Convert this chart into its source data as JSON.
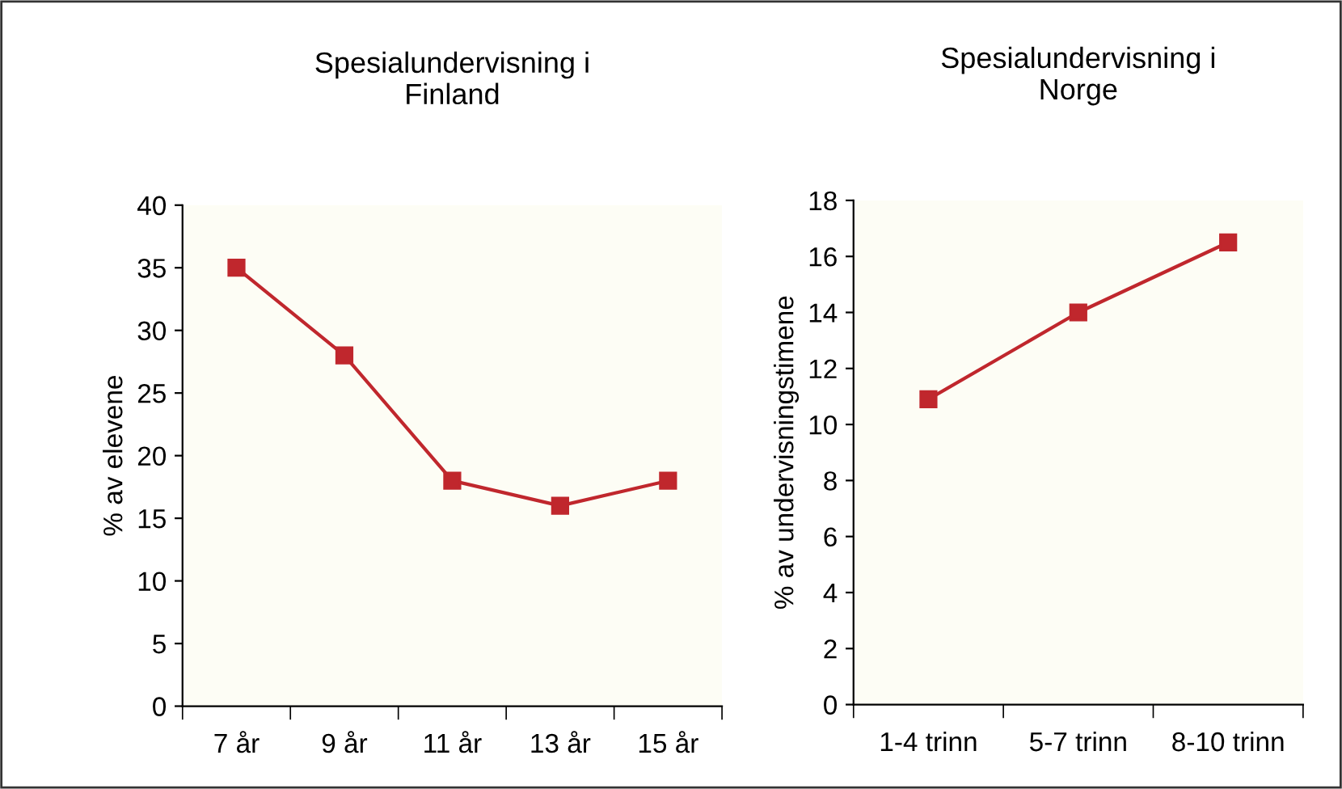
{
  "chart_data": [
    {
      "type": "line",
      "title": "Spesialundervisning i\nFinland",
      "ylabel": "% av elevene",
      "categories": [
        "7 år",
        "9 år",
        "11 år",
        "13 år",
        "15 år"
      ],
      "series": [
        {
          "color": "#c0272d",
          "values": [
            35,
            28,
            18,
            16,
            18
          ]
        }
      ],
      "ylim": [
        0,
        40
      ],
      "yticks": [
        0,
        5,
        10,
        15,
        20,
        25,
        30,
        35,
        40
      ],
      "marker": "square",
      "grid": false
    },
    {
      "type": "line",
      "title": "Spesialundervisning i\nNorge",
      "ylabel": "% av undervisningstimene",
      "categories": [
        "1-4 trinn",
        "5-7 trinn",
        "8-10 trinn"
      ],
      "series": [
        {
          "color": "#c0272d",
          "values": [
            10.9,
            14,
            16.5
          ]
        }
      ],
      "ylim": [
        0,
        18
      ],
      "yticks": [
        0,
        2,
        4,
        6,
        8,
        10,
        12,
        14,
        16,
        18
      ],
      "marker": "square",
      "grid": false
    }
  ]
}
